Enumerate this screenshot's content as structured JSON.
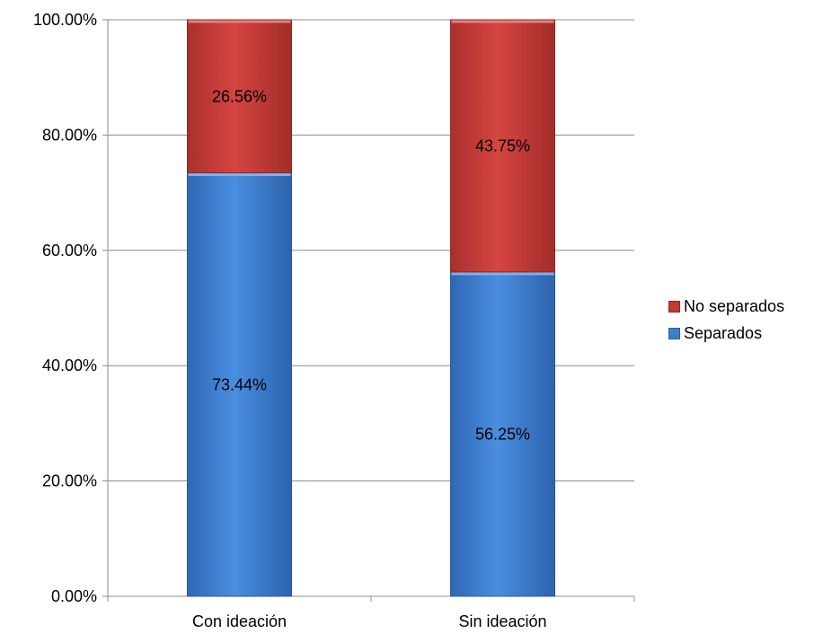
{
  "chart_data": {
    "type": "bar",
    "stacked": true,
    "categories": [
      "Con ideación",
      "Sin ideación"
    ],
    "series": [
      {
        "name": "Separados",
        "values": [
          73.44,
          56.25
        ],
        "color": "#3f7ecf"
      },
      {
        "name": "No separados",
        "values": [
          26.56,
          43.75
        ],
        "color": "#c43a36"
      }
    ],
    "data_labels": [
      [
        "73.44%",
        "56.25%"
      ],
      [
        "26.56%",
        "43.75%"
      ]
    ],
    "yticks": [
      "0.00%",
      "20.00%",
      "40.00%",
      "60.00%",
      "80.00%",
      "100.00%"
    ],
    "ylim": [
      0,
      100
    ],
    "grid": true,
    "legend": {
      "placement": "right",
      "items": [
        {
          "name": "No separados",
          "color": "#c43a36"
        },
        {
          "name": "Separados",
          "color": "#3f7ecf"
        }
      ]
    }
  }
}
